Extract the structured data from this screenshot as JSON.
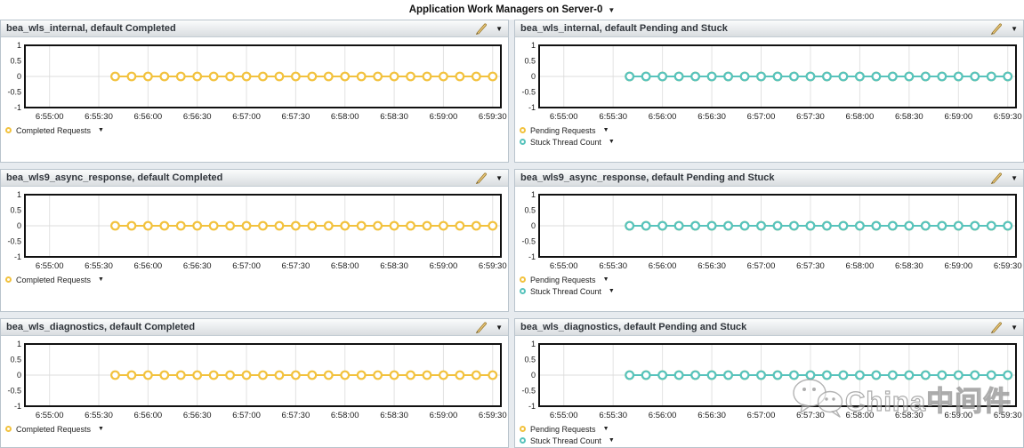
{
  "page": {
    "title": "Application Work Managers on Server-0"
  },
  "icons": {
    "dropdown": "▼",
    "edit": "pencil-icon",
    "watermark_logo": "wechat-icon"
  },
  "watermark": {
    "text": "China中间件"
  },
  "colors": {
    "completed": "#F2C23E",
    "pending": "#F2C23E",
    "stuck": "#57C3BC",
    "plot_border": "#111111",
    "grid_line": "#e2e2e2",
    "titlebar_text": "#30353b"
  },
  "chart_data": {
    "type": "line",
    "shared": {
      "ylim": [
        -1,
        1
      ],
      "y_ticks": [
        "1",
        "0.5",
        "0",
        "-0.5",
        "-1"
      ],
      "y_tick_values": [
        1,
        0.5,
        0,
        -0.5,
        -1
      ],
      "x_ticks": [
        "6:55:00",
        "6:55:30",
        "6:56:00",
        "6:56:30",
        "6:57:00",
        "6:57:30",
        "6:58:00",
        "6:58:30",
        "6:59:00",
        "6:59:30"
      ],
      "grid": "vertical-light-plus-zero-line",
      "legend_position": "below-left",
      "sample_times": [
        "6:55:40",
        "6:55:50",
        "6:56:00",
        "6:56:10",
        "6:56:20",
        "6:56:30",
        "6:56:40",
        "6:56:50",
        "6:57:00",
        "6:57:10",
        "6:57:20",
        "6:57:30",
        "6:57:40",
        "6:57:50",
        "6:58:00",
        "6:58:10",
        "6:58:20",
        "6:58:30",
        "6:58:40",
        "6:58:50",
        "6:59:00",
        "6:59:10",
        "6:59:20",
        "6:59:30"
      ]
    },
    "charts": [
      {
        "title": "bea_wls_internal, default Completed",
        "series": [
          {
            "name": "Completed Requests",
            "color_key": "completed",
            "values": [
              0,
              0,
              0,
              0,
              0,
              0,
              0,
              0,
              0,
              0,
              0,
              0,
              0,
              0,
              0,
              0,
              0,
              0,
              0,
              0,
              0,
              0,
              0,
              0
            ]
          }
        ]
      },
      {
        "title": "bea_wls_internal, default Pending and Stuck",
        "series": [
          {
            "name": "Pending Requests",
            "color_key": "pending",
            "values": [
              0,
              0,
              0,
              0,
              0,
              0,
              0,
              0,
              0,
              0,
              0,
              0,
              0,
              0,
              0,
              0,
              0,
              0,
              0,
              0,
              0,
              0,
              0,
              0
            ]
          },
          {
            "name": "Stuck Thread Count",
            "color_key": "stuck",
            "values": [
              0,
              0,
              0,
              0,
              0,
              0,
              0,
              0,
              0,
              0,
              0,
              0,
              0,
              0,
              0,
              0,
              0,
              0,
              0,
              0,
              0,
              0,
              0,
              0
            ]
          }
        ]
      },
      {
        "title": "bea_wls9_async_response, default Completed",
        "series": [
          {
            "name": "Completed Requests",
            "color_key": "completed",
            "values": [
              0,
              0,
              0,
              0,
              0,
              0,
              0,
              0,
              0,
              0,
              0,
              0,
              0,
              0,
              0,
              0,
              0,
              0,
              0,
              0,
              0,
              0,
              0,
              0
            ]
          }
        ]
      },
      {
        "title": "bea_wls9_async_response, default Pending and Stuck",
        "series": [
          {
            "name": "Pending Requests",
            "color_key": "pending",
            "values": [
              0,
              0,
              0,
              0,
              0,
              0,
              0,
              0,
              0,
              0,
              0,
              0,
              0,
              0,
              0,
              0,
              0,
              0,
              0,
              0,
              0,
              0,
              0,
              0
            ]
          },
          {
            "name": "Stuck Thread Count",
            "color_key": "stuck",
            "values": [
              0,
              0,
              0,
              0,
              0,
              0,
              0,
              0,
              0,
              0,
              0,
              0,
              0,
              0,
              0,
              0,
              0,
              0,
              0,
              0,
              0,
              0,
              0,
              0
            ]
          }
        ]
      },
      {
        "title": "bea_wls_diagnostics, default Completed",
        "series": [
          {
            "name": "Completed Requests",
            "color_key": "completed",
            "values": [
              0,
              0,
              0,
              0,
              0,
              0,
              0,
              0,
              0,
              0,
              0,
              0,
              0,
              0,
              0,
              0,
              0,
              0,
              0,
              0,
              0,
              0,
              0,
              0
            ]
          }
        ]
      },
      {
        "title": "bea_wls_diagnostics, default Pending and Stuck",
        "series": [
          {
            "name": "Pending Requests",
            "color_key": "pending",
            "values": [
              0,
              0,
              0,
              0,
              0,
              0,
              0,
              0,
              0,
              0,
              0,
              0,
              0,
              0,
              0,
              0,
              0,
              0,
              0,
              0,
              0,
              0,
              0,
              0
            ]
          },
          {
            "name": "Stuck Thread Count",
            "color_key": "stuck",
            "values": [
              0,
              0,
              0,
              0,
              0,
              0,
              0,
              0,
              0,
              0,
              0,
              0,
              0,
              0,
              0,
              0,
              0,
              0,
              0,
              0,
              0,
              0,
              0,
              0
            ]
          }
        ]
      }
    ]
  }
}
